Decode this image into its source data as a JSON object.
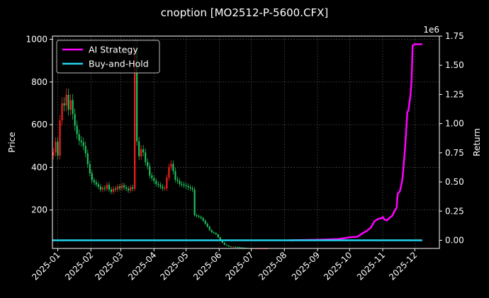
{
  "chart_data": {
    "type": "line",
    "title": "cnoption [MO2512-P-5600.CFX]",
    "ylabel_left": "Price",
    "ylabel_right": "Return",
    "right_axis_multiplier": "1e6",
    "xlim": [
      "2024-12-27",
      "2025-12-24"
    ],
    "ylim_left": [
      20,
      1015
    ],
    "ylim_right": [
      -70000,
      1750000
    ],
    "grid": true,
    "legend_position": "top-left",
    "x_ticks": [
      "2025-01",
      "2025-02",
      "2025-03",
      "2025-04",
      "2025-05",
      "2025-06",
      "2025-07",
      "2025-08",
      "2025-09",
      "2025-10",
      "2025-11",
      "2025-12"
    ],
    "y_ticks_left": [
      200,
      400,
      600,
      800,
      1000
    ],
    "y_ticks_right": [
      "0.00",
      "0.25",
      "0.50",
      "0.75",
      "1.00",
      "1.25",
      "1.50",
      "1.75"
    ],
    "y_tick_values_right": [
      0,
      250000,
      500000,
      750000,
      1000000,
      1250000,
      1500000,
      1750000
    ],
    "series": [
      {
        "name": "AI Strategy",
        "axis": "right",
        "color": "#ff00ff",
        "points": [
          [
            "2025-08-06",
            0
          ],
          [
            "2025-08-20",
            2000
          ],
          [
            "2025-09-05",
            5000
          ],
          [
            "2025-09-20",
            10000
          ],
          [
            "2025-10-01",
            25000
          ],
          [
            "2025-10-08",
            30000
          ],
          [
            "2025-10-10",
            40000
          ],
          [
            "2025-10-13",
            60000
          ],
          [
            "2025-10-17",
            80000
          ],
          [
            "2025-10-21",
            110000
          ],
          [
            "2025-10-24",
            160000
          ],
          [
            "2025-10-27",
            180000
          ],
          [
            "2025-10-31",
            190000
          ],
          [
            "2025-11-01",
            200000
          ],
          [
            "2025-11-02",
            185000
          ],
          [
            "2025-11-03",
            175000
          ],
          [
            "2025-11-05",
            170000
          ],
          [
            "2025-11-07",
            190000
          ],
          [
            "2025-11-10",
            210000
          ],
          [
            "2025-11-12",
            250000
          ],
          [
            "2025-11-14",
            280000
          ],
          [
            "2025-11-15",
            400000
          ],
          [
            "2025-11-17",
            420000
          ],
          [
            "2025-11-19",
            500000
          ],
          [
            "2025-11-20",
            580000
          ],
          [
            "2025-11-22",
            800000
          ],
          [
            "2025-11-24",
            1100000
          ],
          [
            "2025-11-25",
            1110000
          ],
          [
            "2025-11-27",
            1250000
          ],
          [
            "2025-11-28",
            1380000
          ],
          [
            "2025-11-29",
            1670000
          ],
          [
            "2025-12-01",
            1680000
          ],
          [
            "2025-12-08",
            1680000
          ]
        ]
      },
      {
        "name": "Buy-and-Hold",
        "axis": "right",
        "color": "#22d3ee",
        "points": [
          [
            "2024-12-27",
            0
          ],
          [
            "2025-12-08",
            0
          ]
        ]
      }
    ],
    "price": {
      "type": "candlestick",
      "axis": "left",
      "up_color": "#ff2020",
      "down_color": "#22c55e",
      "start_date": "2024-12-28",
      "step_days": 2,
      "closes": [
        470,
        520,
        455,
        620,
        700,
        690,
        740,
        670,
        715,
        650,
        595,
        555,
        525,
        518,
        500,
        465,
        415,
        372,
        340,
        330,
        320,
        310,
        296,
        304,
        300,
        318,
        296,
        286,
        300,
        296,
        310,
        302,
        316,
        306,
        300,
        292,
        306,
        300,
        960,
        522,
        452,
        485,
        470,
        425,
        405,
        362,
        350,
        336,
        322,
        318,
        310,
        302,
        302,
        352,
        402,
        416,
        382,
        342,
        336,
        322,
        320,
        316,
        312,
        306,
        302,
        296,
        176,
        172,
        168,
        162,
        150,
        136,
        122,
        106,
        96,
        92,
        86,
        72,
        57,
        47,
        37,
        34,
        29,
        28,
        28,
        27,
        26,
        25,
        24,
        23,
        22,
        21,
        21,
        20,
        20,
        20,
        20,
        20,
        20,
        20,
        20
      ]
    }
  },
  "legend": {
    "items": [
      {
        "name": "AI Strategy",
        "color": "#ff00ff"
      },
      {
        "name": "Buy-and-Hold",
        "color": "#22d3ee"
      }
    ]
  }
}
